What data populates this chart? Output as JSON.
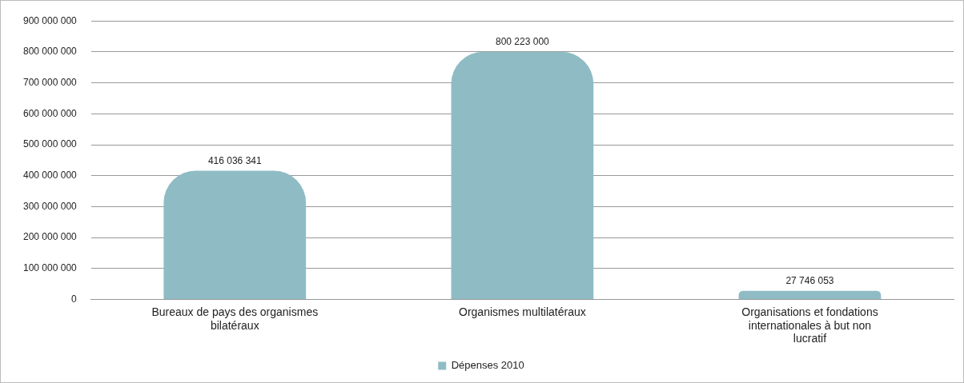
{
  "chart_data": {
    "type": "bar",
    "categories": [
      "Bureaux de pays des organismes bilatéraux",
      "Organismes multilatéraux",
      "Organisations et fondations internationales à but non lucratif"
    ],
    "series": [
      {
        "name": "Dépenses 2010",
        "color": "#8fbcc4",
        "values": [
          416036341,
          800223000,
          27746053
        ],
        "value_labels": [
          "416 036 341",
          "800 223 000",
          "27 746 053"
        ]
      }
    ],
    "ylim": [
      0,
      900000000
    ],
    "yticks": [
      {
        "value": 0,
        "label": "0"
      },
      {
        "value": 100000000,
        "label": "100 000 000"
      },
      {
        "value": 200000000,
        "label": "200 000 000"
      },
      {
        "value": 300000000,
        "label": "300 000 000"
      },
      {
        "value": 400000000,
        "label": "400 000 000"
      },
      {
        "value": 500000000,
        "label": "500 000 000"
      },
      {
        "value": 600000000,
        "label": "600 000 000"
      },
      {
        "value": 700000000,
        "label": "700 000 000"
      },
      {
        "value": 800000000,
        "label": "800 000 000"
      },
      {
        "value": 900000000,
        "label": "900 000 000"
      }
    ],
    "grid": "y",
    "legend": "bottom"
  }
}
